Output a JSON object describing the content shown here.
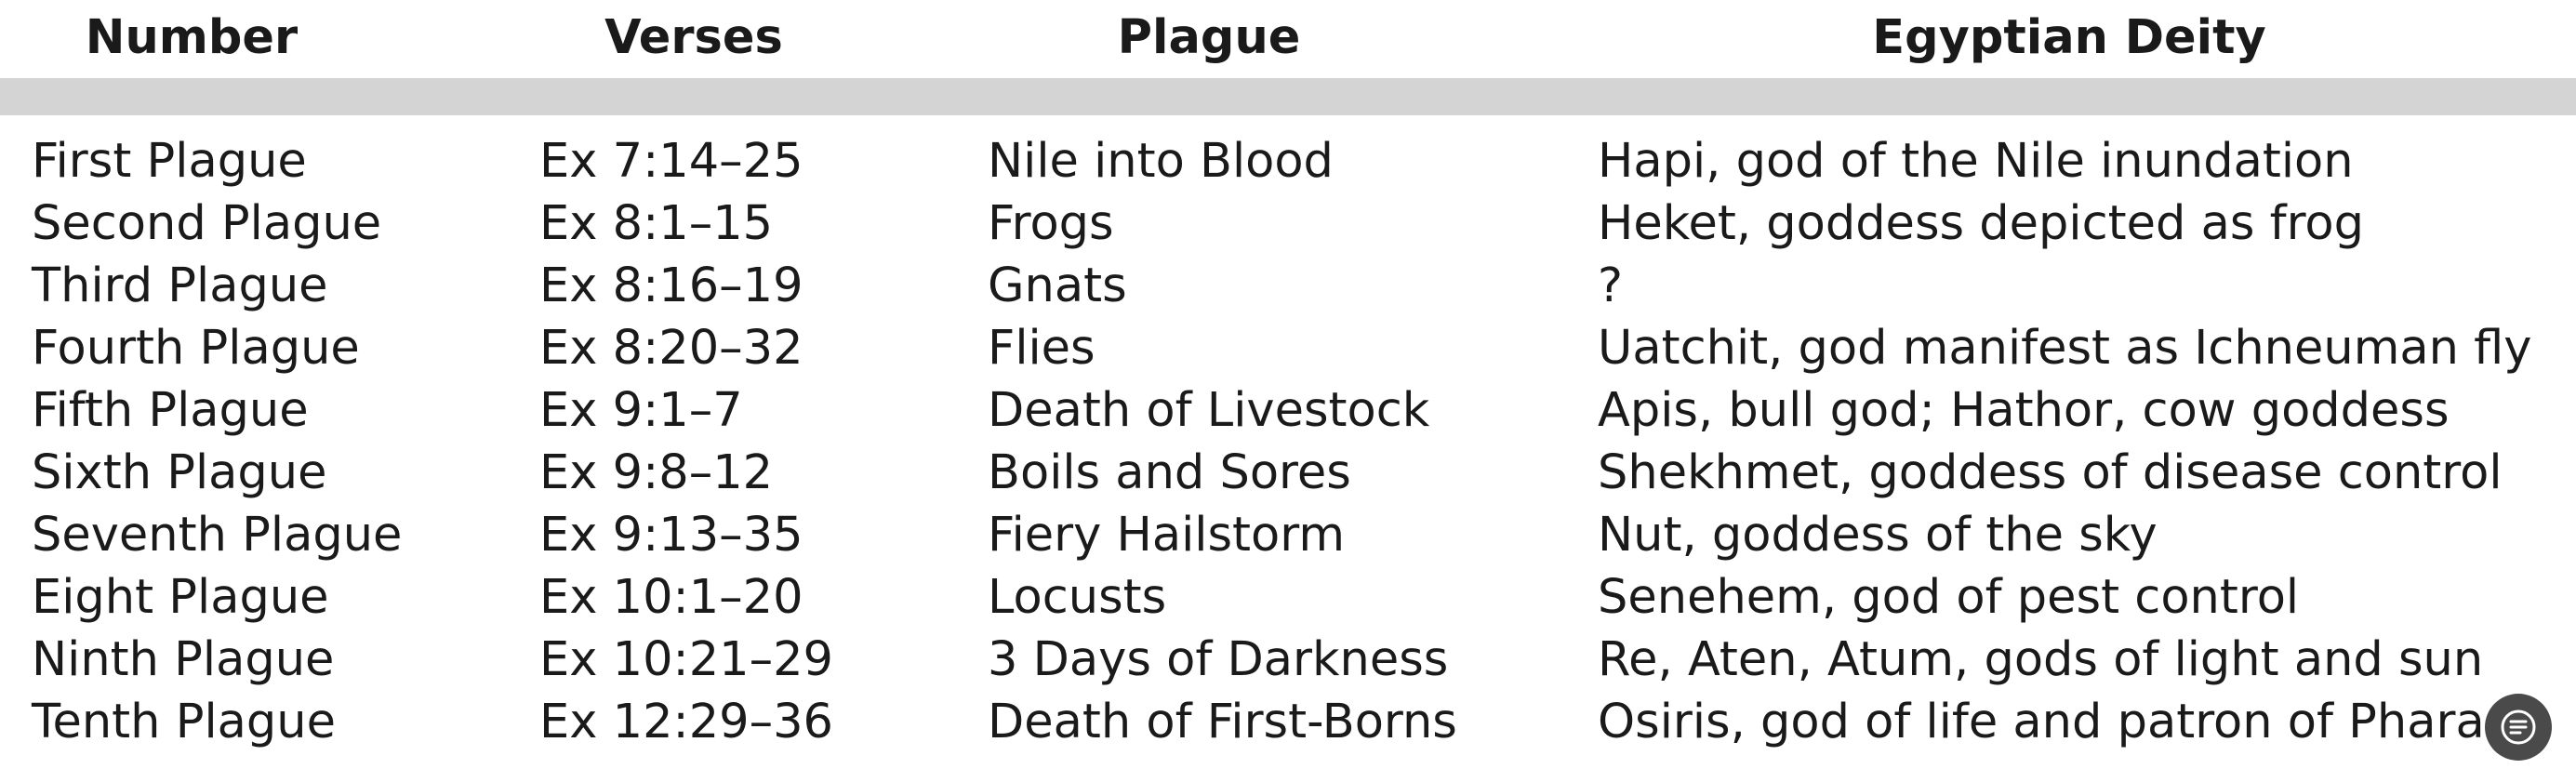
{
  "table": {
    "headers": [
      "Number",
      "Verses",
      "Plague",
      "Egyptian Deity"
    ],
    "rows": [
      [
        "First Plague",
        "Ex 7:14–25",
        "Nile into Blood",
        "Hapi, god of the Nile inundation"
      ],
      [
        "Second Plague",
        "Ex 8:1–15",
        "Frogs",
        "Heket, goddess depicted as frog"
      ],
      [
        "Third Plague",
        "Ex 8:16–19",
        "Gnats",
        "?"
      ],
      [
        "Fourth Plague",
        "Ex 8:20–32",
        "Flies",
        "Uatchit, god manifest as Ichneuman fly"
      ],
      [
        "Fifth Plague",
        "Ex 9:1–7",
        "Death of Livestock",
        "Apis, bull god; Hathor, cow goddess"
      ],
      [
        "Sixth Plague",
        "Ex 9:8–12",
        "Boils and Sores",
        "Shekhmet, goddess of disease control"
      ],
      [
        "Seventh Plague",
        "Ex 9:13–35",
        "Fiery Hailstorm",
        "Nut, goddess of the sky"
      ],
      [
        "Eight Plague",
        "Ex 10:1–20",
        "Locusts",
        "Senehem, god of pest control"
      ],
      [
        "Ninth Plague",
        "Ex 10:21–29",
        "3 Days of Darkness",
        "Re, Aten, Atum, gods of light and sun"
      ],
      [
        "Tenth Plague",
        "Ex 12:29–36",
        "Death of First-Borns",
        "Osiris, god of life and patron of Pharaoh"
      ]
    ]
  },
  "overlay": {
    "icon": "document-list-icon",
    "color": "#4a4a4a"
  }
}
